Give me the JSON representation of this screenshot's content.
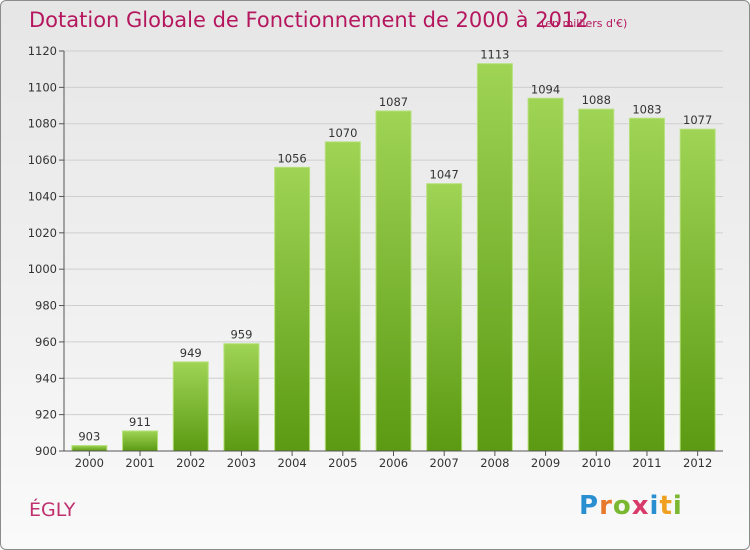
{
  "header": {
    "title": "Dotation Globale de Fonctionnement de 2000 à 2012",
    "subtitle": "(en milliers d'€)"
  },
  "footer": {
    "commune": "ÉGLY",
    "logo_text": "Proxiti"
  },
  "colors": {
    "title": "#b5175f",
    "bar_top": "#9fd455",
    "bar_bottom": "#5b9a12",
    "grid": "#cfcfcf"
  },
  "chart_data": {
    "type": "bar",
    "title": "Dotation Globale de Fonctionnement de 2000 à 2012",
    "subtitle": "(en milliers d'€)",
    "categories": [
      "2000",
      "2001",
      "2002",
      "2003",
      "2004",
      "2005",
      "2006",
      "2007",
      "2008",
      "2009",
      "2010",
      "2011",
      "2012"
    ],
    "values": [
      903,
      911,
      949,
      959,
      1056,
      1070,
      1087,
      1047,
      1113,
      1094,
      1088,
      1083,
      1077
    ],
    "ylim": [
      900,
      1120
    ],
    "yticks": [
      900,
      920,
      940,
      960,
      980,
      1000,
      1020,
      1040,
      1060,
      1080,
      1100,
      1120
    ],
    "grid": true,
    "legend": "none"
  }
}
